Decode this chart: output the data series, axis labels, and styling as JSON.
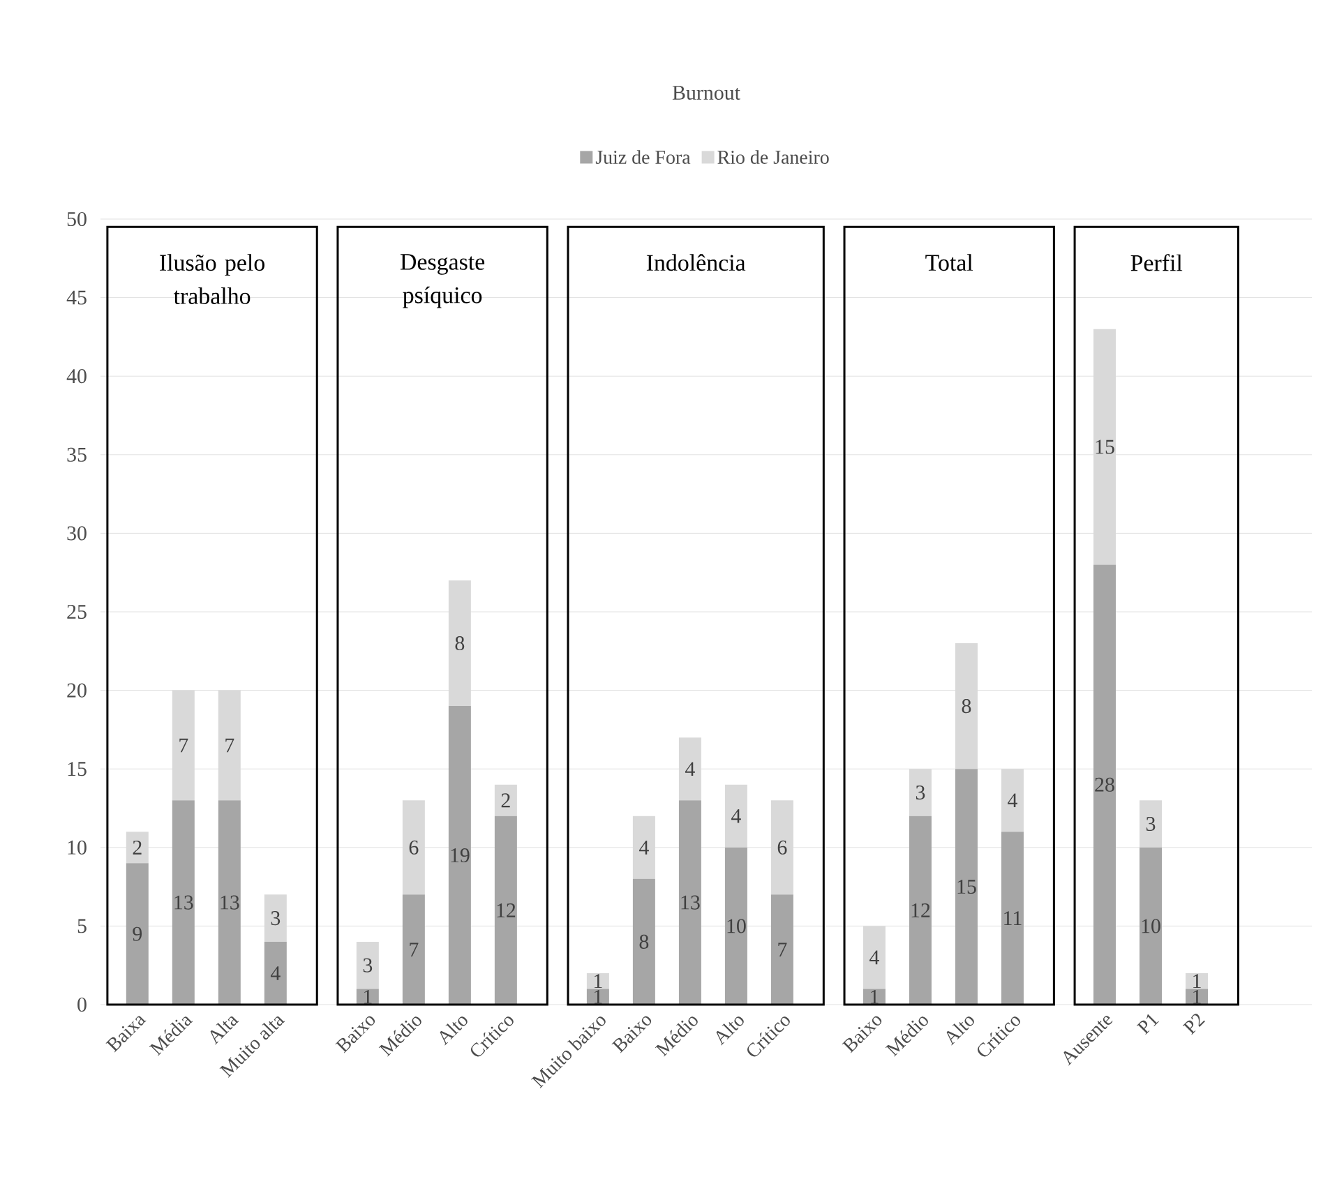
{
  "chart_data": {
    "type": "bar",
    "stacked": true,
    "title": "Burnout",
    "categories": [
      "Baixa",
      "Média",
      "Alta",
      "Muito alta",
      null,
      "Baixo",
      "Médio",
      "Alto",
      "Crítico",
      null,
      "Muito baixo",
      "Baixo",
      "Médio",
      "Alto",
      "Crítico",
      null,
      "Baixo",
      "Médio",
      "Alto",
      "Crítico",
      null,
      "Ausente",
      "P1",
      "P2",
      null,
      null
    ],
    "series": [
      {
        "name": "Juiz de Fora",
        "color": "#a6a6a6",
        "values": [
          9,
          13,
          13,
          4,
          null,
          1,
          7,
          19,
          12,
          null,
          1,
          8,
          13,
          10,
          7,
          null,
          1,
          12,
          15,
          11,
          null,
          28,
          10,
          1,
          null,
          null
        ]
      },
      {
        "name": "Rio de Janeiro",
        "color": "#d9d9d9",
        "values": [
          2,
          7,
          7,
          3,
          null,
          3,
          6,
          8,
          2,
          null,
          1,
          4,
          4,
          4,
          6,
          null,
          4,
          3,
          8,
          4,
          null,
          15,
          3,
          1,
          null,
          null
        ]
      }
    ],
    "annotations": [
      "Ilusão pelo trabalho",
      "Desgaste psíquico",
      "Indolência",
      "Total",
      "Perfil"
    ],
    "ylim": [
      0,
      50
    ],
    "yticks": [
      0,
      5,
      10,
      15,
      20,
      25,
      30,
      35,
      40,
      45,
      50
    ],
    "grid": "y",
    "legend": "top",
    "data_labels": true
  }
}
